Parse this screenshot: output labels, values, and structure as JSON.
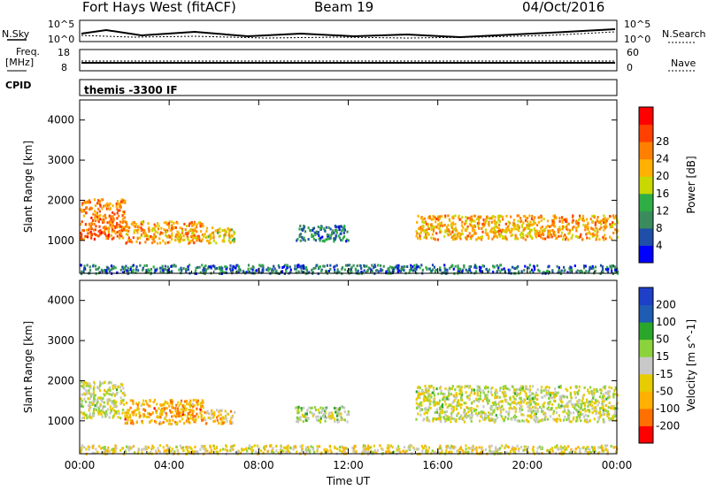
{
  "header": {
    "station": "Fort Hays West (fitACF)",
    "beam": "Beam 19",
    "date": "04/Oct/2016"
  },
  "top_panels": {
    "nsky_label": "N.Sky",
    "nsky_ticks": [
      "10^5",
      "10^0"
    ],
    "nsearch_label": "N.Search",
    "nsearch_ticks": [
      "10^5",
      "10^0"
    ],
    "freq_label_1": "Freq.",
    "freq_label_2": "[MHz]",
    "freq_ticks": [
      "18",
      "8"
    ],
    "nave_label": "Nave",
    "nave_ticks": [
      "60",
      "0"
    ],
    "cpid_label": "CPID",
    "cpid_text": "themis -3300 IF"
  },
  "colors": {
    "power": [
      "#0000ff",
      "#1f4fa8",
      "#3a8c5c",
      "#2fae45",
      "#c8d800",
      "#ffb000",
      "#ff8000",
      "#ff4000",
      "#ff0000"
    ],
    "velocity": [
      "#ff0000",
      "#ff7000",
      "#ffb000",
      "#e6cc00",
      "#c8c8c8",
      "#8cd23c",
      "#2aa62a",
      "#1f5cb4",
      "#1e40c8"
    ]
  },
  "chart_data": [
    {
      "type": "heatmap",
      "title": "",
      "ylabel": "Slant Range [km]",
      "xlabel": "",
      "x_tick_labels": [
        "00:00",
        "04:00",
        "08:00",
        "12:00",
        "16:00",
        "20:00",
        "00:00"
      ],
      "y_tick_labels": [
        "1000",
        "2000",
        "3000",
        "4000"
      ],
      "xlim": [
        0,
        24
      ],
      "ylim": [
        180,
        4500
      ],
      "colorbar_label": "Power [dB]",
      "colorbar_ticks": [
        "4",
        "8",
        "12",
        "16",
        "20",
        "24",
        "28"
      ],
      "color_range": [
        0,
        30
      ],
      "regions": [
        {
          "t0": 0.0,
          "t1": 2.0,
          "r0": 1050,
          "r1": 2050,
          "level": 22
        },
        {
          "t0": 2.0,
          "t1": 5.5,
          "r0": 950,
          "r1": 1500,
          "level": 20
        },
        {
          "t0": 5.5,
          "t1": 6.9,
          "r0": 950,
          "r1": 1350,
          "level": 16
        },
        {
          "t0": 9.6,
          "t1": 12.0,
          "r0": 1000,
          "r1": 1400,
          "level": 8
        },
        {
          "t0": 15.0,
          "t1": 24.0,
          "r0": 1050,
          "r1": 1650,
          "level": 19
        },
        {
          "t0": 0.0,
          "t1": 24.0,
          "r0": 200,
          "r1": 420,
          "level": 7
        }
      ]
    },
    {
      "type": "heatmap",
      "title": "",
      "ylabel": "Slant Range [km]",
      "xlabel": "Time UT",
      "x_tick_labels": [
        "00:00",
        "04:00",
        "08:00",
        "12:00",
        "16:00",
        "20:00",
        "00:00"
      ],
      "y_tick_labels": [
        "1000",
        "2000",
        "3000",
        "4000"
      ],
      "xlim": [
        0,
        24
      ],
      "ylim": [
        180,
        4500
      ],
      "colorbar_label": "Velocity [m s^-1]",
      "colorbar_ticks": [
        "200",
        "100",
        "50",
        "15",
        "-15",
        "-50",
        "-100",
        "-200"
      ],
      "color_range": [
        -250,
        250
      ],
      "regions": [
        {
          "t0": 0.0,
          "t1": 2.0,
          "r0": 1100,
          "r1": 2000,
          "level": 0
        },
        {
          "t0": 2.0,
          "t1": 5.5,
          "r0": 950,
          "r1": 1550,
          "level": -110
        },
        {
          "t0": 5.5,
          "t1": 6.9,
          "r0": 950,
          "r1": 1300,
          "level": -70
        },
        {
          "t0": 9.6,
          "t1": 12.0,
          "r0": 1000,
          "r1": 1400,
          "level": 30
        },
        {
          "t0": 15.0,
          "t1": 24.0,
          "r0": 1000,
          "r1": 1900,
          "level": 0
        },
        {
          "t0": 0.0,
          "t1": 24.0,
          "r0": 200,
          "r1": 420,
          "level": -40
        }
      ]
    }
  ]
}
